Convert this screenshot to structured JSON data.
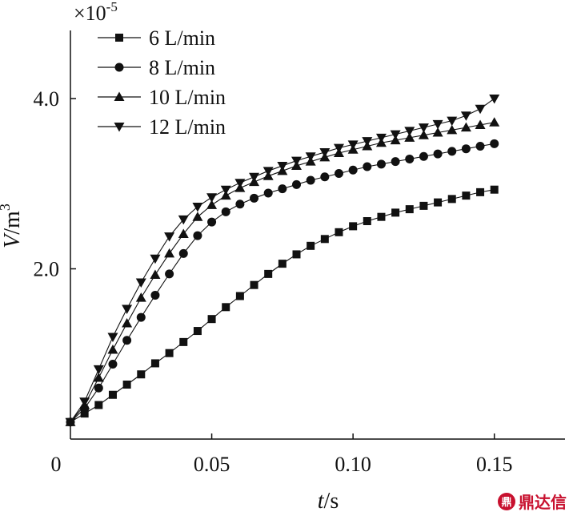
{
  "chart_data": {
    "type": "line",
    "title": "",
    "xlabel_italic": "t",
    "xlabel_unit": "/s",
    "ylabel_italic": "V",
    "ylabel_unit": "/m",
    "ylabel_exp": "3",
    "y_multiplier_base": "×10",
    "y_multiplier_exp": "-5",
    "x_origin_label": "0",
    "xlim": [
      0,
      0.175
    ],
    "ylim": [
      0,
      4.8
    ],
    "x_ticks": [
      0.05,
      0.1,
      0.15
    ],
    "x_tick_labels": [
      "0.05",
      "0.10",
      "0.15"
    ],
    "y_ticks": [
      2.0,
      4.0
    ],
    "y_tick_labels": [
      "2.0",
      "4.0"
    ],
    "legend_position": "top-left",
    "series": [
      {
        "name": "6 L/min",
        "marker": "square",
        "x": [
          0,
          0.005,
          0.01,
          0.015,
          0.02,
          0.025,
          0.03,
          0.035,
          0.04,
          0.045,
          0.05,
          0.055,
          0.06,
          0.065,
          0.07,
          0.075,
          0.08,
          0.085,
          0.09,
          0.095,
          0.1,
          0.105,
          0.11,
          0.115,
          0.12,
          0.125,
          0.13,
          0.135,
          0.14,
          0.145,
          0.15
        ],
        "values": [
          0.2,
          0.3,
          0.4,
          0.52,
          0.64,
          0.76,
          0.89,
          1.01,
          1.14,
          1.27,
          1.41,
          1.55,
          1.68,
          1.81,
          1.94,
          2.06,
          2.17,
          2.27,
          2.35,
          2.43,
          2.5,
          2.56,
          2.61,
          2.66,
          2.7,
          2.74,
          2.78,
          2.82,
          2.86,
          2.9,
          2.93
        ]
      },
      {
        "name": "8 L/min",
        "marker": "circle",
        "x": [
          0,
          0.005,
          0.01,
          0.015,
          0.02,
          0.025,
          0.03,
          0.035,
          0.04,
          0.045,
          0.05,
          0.055,
          0.06,
          0.065,
          0.07,
          0.075,
          0.08,
          0.085,
          0.09,
          0.095,
          0.1,
          0.105,
          0.11,
          0.115,
          0.12,
          0.125,
          0.13,
          0.135,
          0.14,
          0.145,
          0.15
        ],
        "values": [
          0.2,
          0.36,
          0.6,
          0.88,
          1.16,
          1.43,
          1.69,
          1.94,
          2.18,
          2.39,
          2.55,
          2.67,
          2.76,
          2.83,
          2.89,
          2.94,
          2.99,
          3.04,
          3.08,
          3.12,
          3.16,
          3.2,
          3.23,
          3.26,
          3.29,
          3.32,
          3.35,
          3.38,
          3.41,
          3.44,
          3.47
        ]
      },
      {
        "name": "10 L/min",
        "marker": "triangle-up",
        "x": [
          0,
          0.005,
          0.01,
          0.015,
          0.02,
          0.025,
          0.03,
          0.035,
          0.04,
          0.045,
          0.05,
          0.055,
          0.06,
          0.065,
          0.07,
          0.075,
          0.08,
          0.085,
          0.09,
          0.095,
          0.1,
          0.105,
          0.11,
          0.115,
          0.12,
          0.125,
          0.13,
          0.135,
          0.14,
          0.145,
          0.15
        ],
        "values": [
          0.2,
          0.4,
          0.72,
          1.05,
          1.36,
          1.66,
          1.93,
          2.18,
          2.41,
          2.61,
          2.75,
          2.86,
          2.95,
          3.02,
          3.09,
          3.15,
          3.21,
          3.26,
          3.31,
          3.36,
          3.4,
          3.44,
          3.48,
          3.51,
          3.54,
          3.57,
          3.6,
          3.63,
          3.66,
          3.69,
          3.72
        ]
      },
      {
        "name": "12 L/min",
        "marker": "triangle-down",
        "x": [
          0,
          0.005,
          0.01,
          0.015,
          0.02,
          0.025,
          0.03,
          0.035,
          0.04,
          0.045,
          0.05,
          0.055,
          0.06,
          0.065,
          0.07,
          0.075,
          0.08,
          0.085,
          0.09,
          0.095,
          0.1,
          0.105,
          0.11,
          0.115,
          0.12,
          0.125,
          0.13,
          0.135,
          0.14,
          0.145,
          0.15
        ],
        "values": [
          0.2,
          0.44,
          0.82,
          1.2,
          1.53,
          1.84,
          2.12,
          2.38,
          2.58,
          2.73,
          2.84,
          2.93,
          3.01,
          3.08,
          3.15,
          3.21,
          3.27,
          3.32,
          3.37,
          3.42,
          3.46,
          3.5,
          3.54,
          3.58,
          3.62,
          3.66,
          3.7,
          3.74,
          3.8,
          3.88,
          4.0
        ]
      }
    ]
  },
  "watermark": {
    "logo_glyph": "鼎",
    "text": "鼎达信"
  }
}
